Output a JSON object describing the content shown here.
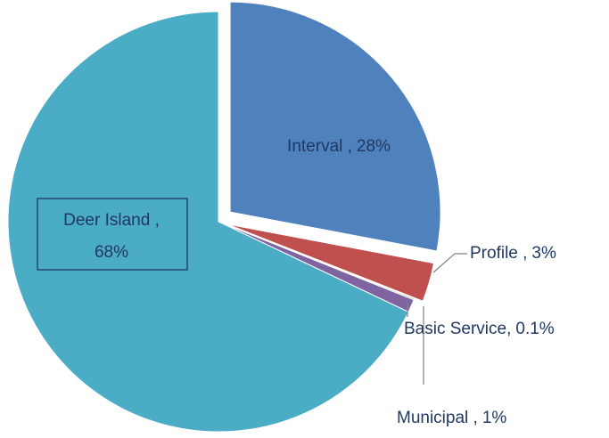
{
  "chart_data": {
    "type": "pie",
    "categories": [
      "Interval ,",
      "Profile ,",
      "Basic Service,",
      "Municipal ,",
      "Deer Island ,"
    ],
    "values": [
      28,
      3,
      0.1,
      1,
      68
    ],
    "value_labels": [
      "28%",
      "3%",
      "0.1%",
      "1%",
      "68%"
    ],
    "colors": [
      "#4f81bd",
      "#c0504d",
      "#9bbb59",
      "#8064a2",
      "#4bacc6"
    ]
  }
}
